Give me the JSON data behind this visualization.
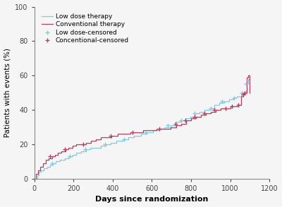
{
  "title": "",
  "xlabel": "Days since randomization",
  "ylabel": "Patients with events (%)",
  "xlim": [
    0,
    1200
  ],
  "ylim": [
    0,
    100
  ],
  "xticks": [
    0,
    200,
    400,
    600,
    800,
    1000,
    1200
  ],
  "yticks": [
    0,
    20,
    40,
    60,
    80,
    100
  ],
  "low_dose_color": "#85c8e0",
  "conventional_color": "#b04060",
  "background_color": "#f5f5f5",
  "low_dose_steps": [
    [
      0,
      0
    ],
    [
      15,
      2
    ],
    [
      25,
      4
    ],
    [
      35,
      5
    ],
    [
      50,
      6
    ],
    [
      65,
      7
    ],
    [
      80,
      8
    ],
    [
      95,
      9
    ],
    [
      110,
      10
    ],
    [
      130,
      11
    ],
    [
      155,
      12
    ],
    [
      175,
      13
    ],
    [
      195,
      14
    ],
    [
      215,
      15
    ],
    [
      240,
      16
    ],
    [
      265,
      17
    ],
    [
      285,
      18
    ],
    [
      310,
      18
    ],
    [
      340,
      19
    ],
    [
      365,
      20
    ],
    [
      390,
      21
    ],
    [
      420,
      22
    ],
    [
      450,
      23
    ],
    [
      480,
      24
    ],
    [
      510,
      25
    ],
    [
      545,
      26
    ],
    [
      575,
      27
    ],
    [
      605,
      28
    ],
    [
      635,
      29
    ],
    [
      665,
      30
    ],
    [
      695,
      31
    ],
    [
      720,
      33
    ],
    [
      745,
      34
    ],
    [
      770,
      35
    ],
    [
      795,
      36
    ],
    [
      820,
      38
    ],
    [
      845,
      39
    ],
    [
      870,
      40
    ],
    [
      895,
      41
    ],
    [
      920,
      43
    ],
    [
      945,
      44
    ],
    [
      970,
      45
    ],
    [
      995,
      46
    ],
    [
      1015,
      47
    ],
    [
      1035,
      48
    ],
    [
      1055,
      49
    ],
    [
      1070,
      50
    ],
    [
      1080,
      51
    ],
    [
      1085,
      55
    ],
    [
      1090,
      57
    ],
    [
      1095,
      58
    ],
    [
      1100,
      57
    ]
  ],
  "conventional_steps": [
    [
      0,
      0
    ],
    [
      10,
      3
    ],
    [
      20,
      5
    ],
    [
      30,
      7
    ],
    [
      45,
      9
    ],
    [
      60,
      11
    ],
    [
      75,
      12
    ],
    [
      90,
      13
    ],
    [
      105,
      14
    ],
    [
      120,
      15
    ],
    [
      140,
      16
    ],
    [
      160,
      17
    ],
    [
      175,
      18
    ],
    [
      195,
      19
    ],
    [
      215,
      20
    ],
    [
      240,
      20
    ],
    [
      265,
      21
    ],
    [
      290,
      22
    ],
    [
      315,
      23
    ],
    [
      340,
      24
    ],
    [
      365,
      24
    ],
    [
      395,
      25
    ],
    [
      425,
      26
    ],
    [
      455,
      26
    ],
    [
      490,
      27
    ],
    [
      525,
      27
    ],
    [
      555,
      28
    ],
    [
      590,
      28
    ],
    [
      625,
      29
    ],
    [
      660,
      29
    ],
    [
      695,
      30
    ],
    [
      725,
      31
    ],
    [
      750,
      32
    ],
    [
      775,
      34
    ],
    [
      800,
      35
    ],
    [
      825,
      36
    ],
    [
      850,
      37
    ],
    [
      875,
      38
    ],
    [
      900,
      39
    ],
    [
      925,
      40
    ],
    [
      950,
      41
    ],
    [
      975,
      41
    ],
    [
      1000,
      42
    ],
    [
      1020,
      42
    ],
    [
      1040,
      43
    ],
    [
      1055,
      48
    ],
    [
      1065,
      49
    ],
    [
      1075,
      50
    ],
    [
      1085,
      59
    ],
    [
      1092,
      60
    ],
    [
      1100,
      50
    ]
  ],
  "low_dose_censored": [
    [
      90,
      9
    ],
    [
      180,
      13
    ],
    [
      260,
      17
    ],
    [
      360,
      20
    ],
    [
      460,
      23
    ],
    [
      570,
      27
    ],
    [
      680,
      31
    ],
    [
      750,
      34
    ],
    [
      820,
      38
    ],
    [
      900,
      41
    ],
    [
      960,
      45
    ],
    [
      1020,
      47
    ],
    [
      1060,
      50
    ],
    [
      1080,
      55
    ],
    [
      1090,
      57
    ]
  ],
  "conventional_censored": [
    [
      80,
      13
    ],
    [
      155,
      17
    ],
    [
      250,
      20
    ],
    [
      390,
      25
    ],
    [
      500,
      27
    ],
    [
      640,
      29
    ],
    [
      720,
      32
    ],
    [
      770,
      34
    ],
    [
      820,
      36
    ],
    [
      870,
      38
    ],
    [
      920,
      40
    ],
    [
      975,
      41
    ],
    [
      1010,
      42
    ],
    [
      1040,
      43
    ],
    [
      1065,
      49
    ],
    [
      1075,
      50
    ]
  ]
}
